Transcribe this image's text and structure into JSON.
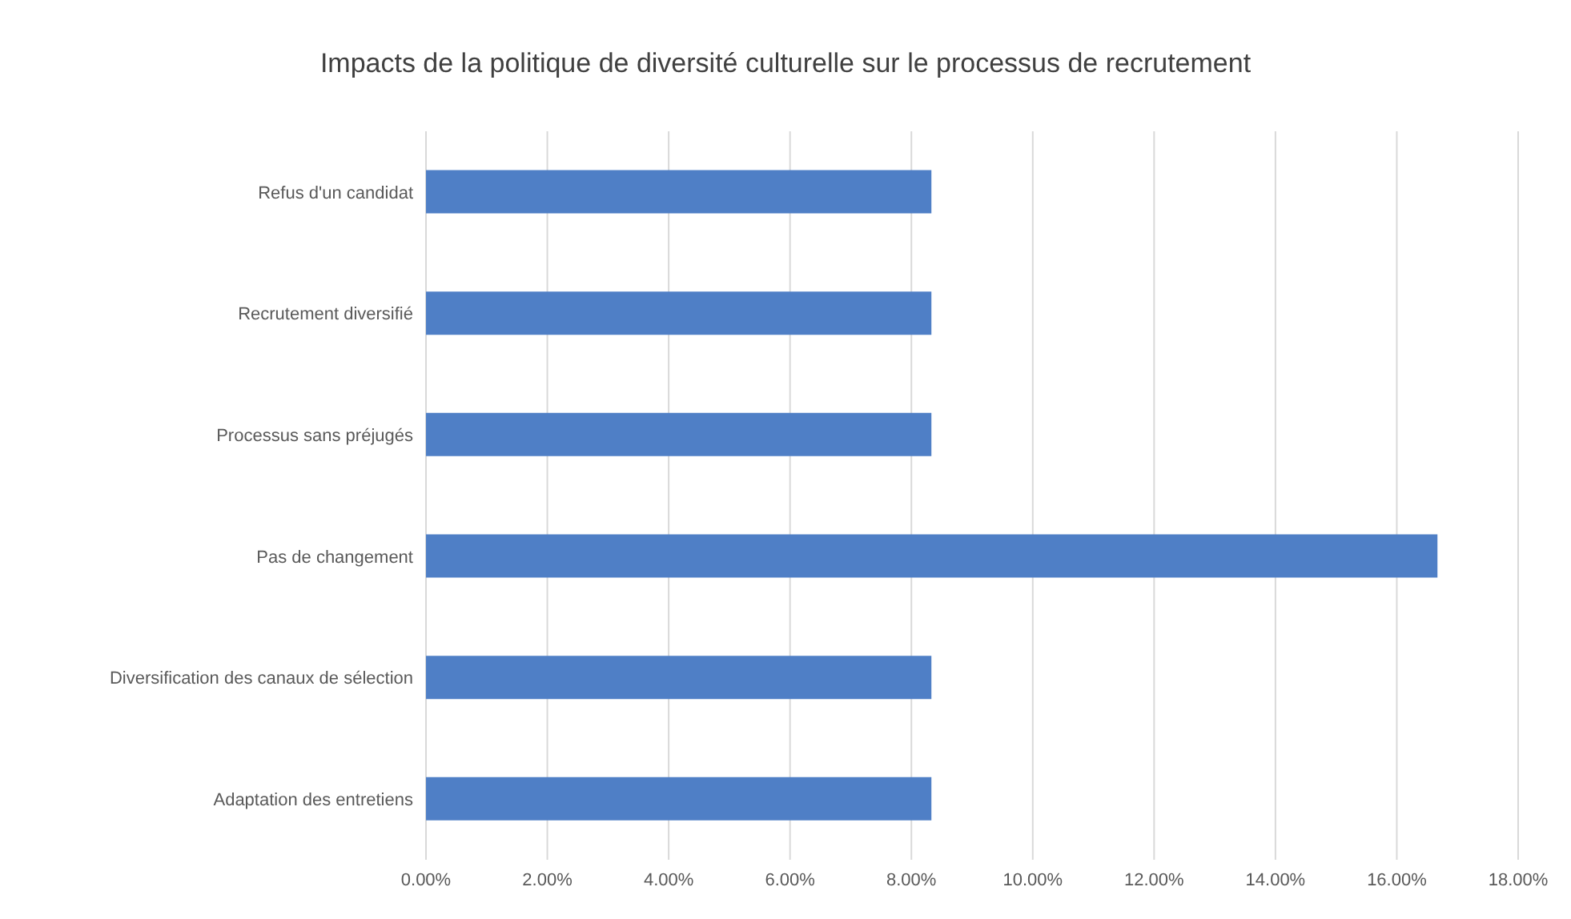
{
  "chart_data": {
    "type": "bar",
    "orientation": "horizontal",
    "title": "Impacts de la politique de diversité culturelle sur le processus de recrutement",
    "categories": [
      "Refus d'un candidat",
      "Recrutement diversifié",
      "Processus sans préjugés",
      "Pas de changement",
      "Diversification des canaux de sélection",
      "Adaptation des entretiens"
    ],
    "values": [
      8.33,
      8.33,
      8.33,
      16.67,
      8.33,
      8.33
    ],
    "color": "#4f7fc6",
    "xlim": [
      0,
      18
    ],
    "xticks": [
      {
        "value": 0,
        "label": "0.00%"
      },
      {
        "value": 2,
        "label": "2.00%"
      },
      {
        "value": 4,
        "label": "4.00%"
      },
      {
        "value": 6,
        "label": "6.00%"
      },
      {
        "value": 8,
        "label": "8.00%"
      },
      {
        "value": 10,
        "label": "10.00%"
      },
      {
        "value": 12,
        "label": "12.00%"
      },
      {
        "value": 14,
        "label": "14.00%"
      },
      {
        "value": 16,
        "label": "16.00%"
      },
      {
        "value": 18,
        "label": "18.00%"
      }
    ],
    "grid": "x"
  }
}
